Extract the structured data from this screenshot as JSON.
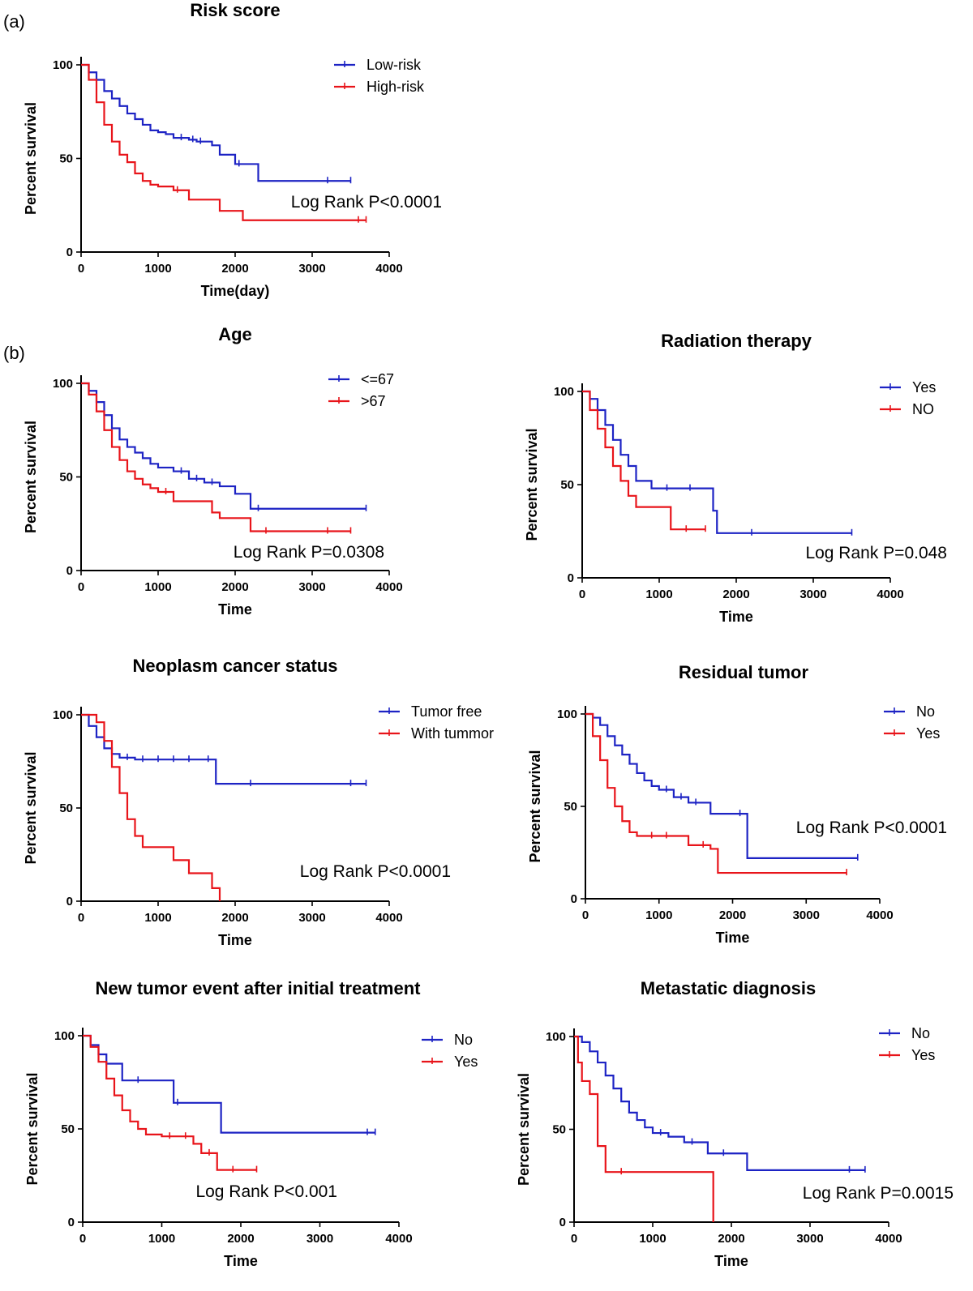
{
  "panel_labels": {
    "a": "(a)",
    "b": "(b)"
  },
  "chart_data": [
    {
      "type": "line",
      "title": "Risk score",
      "xlabel": "Time(day)",
      "ylabel": "Percent survival",
      "xlim": [
        0,
        4000
      ],
      "ylim": [
        0,
        100
      ],
      "xticks": [
        0,
        1000,
        2000,
        3000,
        4000
      ],
      "yticks": [
        0,
        50,
        100
      ],
      "legend_position": "top-right",
      "annotation": "Log Rank P<0.0001",
      "series": [
        {
          "name": "Low-risk",
          "color": "#1d23c4",
          "x": [
            0,
            100,
            200,
            300,
            400,
            500,
            600,
            700,
            800,
            900,
            1000,
            1100,
            1200,
            1300,
            1400,
            1500,
            1600,
            1700,
            1800,
            2000,
            2200,
            2300,
            2600,
            3000,
            3500
          ],
          "y": [
            100,
            96,
            92,
            86,
            82,
            78,
            74,
            71,
            68,
            65,
            64,
            63,
            61,
            61,
            60,
            59,
            59,
            57,
            52,
            47,
            47,
            38,
            38,
            38,
            38
          ],
          "censor_x": [
            1300,
            1450,
            1550,
            2050,
            3200,
            3500
          ]
        },
        {
          "name": "High-risk",
          "color": "#e8141a",
          "x": [
            0,
            100,
            200,
            300,
            400,
            500,
            600,
            700,
            800,
            900,
            1000,
            1200,
            1400,
            1600,
            1800,
            2100,
            2500,
            3000,
            3700
          ],
          "y": [
            100,
            92,
            80,
            68,
            59,
            52,
            48,
            42,
            38,
            36,
            35,
            33,
            28,
            28,
            22,
            17,
            17,
            17,
            17
          ],
          "censor_x": [
            1250,
            3600,
            3700
          ]
        }
      ]
    },
    {
      "type": "line",
      "title": "Age",
      "xlabel": "Time",
      "ylabel": "Percent survival",
      "xlim": [
        0,
        4000
      ],
      "ylim": [
        0,
        100
      ],
      "xticks": [
        0,
        1000,
        2000,
        3000,
        4000
      ],
      "yticks": [
        0,
        50,
        100
      ],
      "legend_position": "top-right",
      "annotation": "Log Rank P=0.0308",
      "series": [
        {
          "name": "<=67",
          "color": "#1d23c4",
          "x": [
            0,
            100,
            200,
            300,
            400,
            500,
            600,
            700,
            800,
            900,
            1000,
            1200,
            1400,
            1600,
            1800,
            2000,
            2200,
            2500,
            3000,
            3700
          ],
          "y": [
            100,
            96,
            90,
            83,
            76,
            70,
            66,
            63,
            60,
            57,
            55,
            53,
            49,
            47,
            45,
            41,
            33,
            33,
            33,
            33
          ],
          "censor_x": [
            1300,
            1500,
            1700,
            2300,
            3700
          ]
        },
        {
          "name": ">67",
          "color": "#e8141a",
          "x": [
            0,
            100,
            200,
            300,
            400,
            500,
            600,
            700,
            800,
            900,
            1000,
            1200,
            1400,
            1700,
            1800,
            2200,
            2600,
            3000,
            3500
          ],
          "y": [
            100,
            94,
            85,
            75,
            66,
            59,
            53,
            49,
            46,
            44,
            42,
            37,
            37,
            31,
            28,
            21,
            21,
            21,
            21
          ],
          "censor_x": [
            1100,
            2400,
            3200,
            3500
          ]
        }
      ]
    },
    {
      "type": "line",
      "title": "Radiation therapy",
      "xlabel": "Time",
      "ylabel": "Percent survival",
      "xlim": [
        0,
        4000
      ],
      "ylim": [
        0,
        100
      ],
      "xticks": [
        0,
        1000,
        2000,
        3000,
        4000
      ],
      "yticks": [
        0,
        50,
        100
      ],
      "legend_position": "top-right",
      "annotation": "Log Rank P=0.048",
      "series": [
        {
          "name": "Yes",
          "color": "#1d23c4",
          "x": [
            0,
            100,
            200,
            300,
            400,
            500,
            600,
            700,
            800,
            900,
            1000,
            1200,
            1700,
            1750,
            2200,
            3000,
            3500
          ],
          "y": [
            100,
            96,
            90,
            82,
            74,
            66,
            60,
            52,
            52,
            48,
            48,
            48,
            36,
            24,
            24,
            24,
            24
          ],
          "censor_x": [
            1100,
            1400,
            2200,
            3500
          ]
        },
        {
          "name": "NO",
          "color": "#e8141a",
          "x": [
            0,
            100,
            200,
            300,
            400,
            500,
            600,
            700,
            800,
            1000,
            1150,
            1300,
            1600
          ],
          "y": [
            100,
            90,
            80,
            70,
            60,
            52,
            44,
            38,
            38,
            38,
            26,
            26,
            26
          ],
          "censor_x": [
            1350,
            1600
          ]
        }
      ]
    },
    {
      "type": "line",
      "title": "Neoplasm cancer status",
      "xlabel": "Time",
      "ylabel": "Percent survival",
      "xlim": [
        0,
        4000
      ],
      "ylim": [
        0,
        100
      ],
      "xticks": [
        0,
        1000,
        2000,
        3000,
        4000
      ],
      "yticks": [
        0,
        50,
        100
      ],
      "legend_position": "top-right",
      "annotation": "Log Rank P<0.0001",
      "series": [
        {
          "name": "Tumor free",
          "color": "#1d23c4",
          "x": [
            0,
            100,
            200,
            300,
            400,
            500,
            700,
            1000,
            1500,
            1750,
            1800,
            2500,
            3000,
            3700
          ],
          "y": [
            100,
            94,
            88,
            82,
            79,
            77,
            76,
            76,
            76,
            63,
            63,
            63,
            63,
            63
          ],
          "censor_x": [
            600,
            800,
            1000,
            1200,
            1400,
            1650,
            2200,
            3500,
            3700
          ]
        },
        {
          "name": "With tummor",
          "color": "#e8141a",
          "x": [
            0,
            100,
            200,
            300,
            400,
            500,
            600,
            700,
            800,
            1000,
            1200,
            1400,
            1700,
            1800
          ],
          "y": [
            100,
            100,
            96,
            86,
            72,
            58,
            44,
            35,
            29,
            29,
            22,
            15,
            7,
            0
          ],
          "censor_x": []
        }
      ]
    },
    {
      "type": "line",
      "title": "Residual tumor",
      "xlabel": "Time",
      "ylabel": "Percent survival",
      "xlim": [
        0,
        4000
      ],
      "ylim": [
        0,
        100
      ],
      "xticks": [
        0,
        1000,
        2000,
        3000,
        4000
      ],
      "yticks": [
        0,
        50,
        100
      ],
      "legend_position": "top-right",
      "annotation": "Log Rank P<0.0001",
      "series": [
        {
          "name": "No",
          "color": "#1d23c4",
          "x": [
            0,
            100,
            200,
            300,
            400,
            500,
            600,
            700,
            800,
            900,
            1000,
            1200,
            1400,
            1600,
            1700,
            1800,
            2200,
            2600,
            3000,
            3700
          ],
          "y": [
            100,
            98,
            94,
            88,
            83,
            78,
            73,
            68,
            64,
            61,
            59,
            55,
            52,
            52,
            46,
            46,
            22,
            22,
            22,
            22
          ],
          "censor_x": [
            1100,
            1300,
            1500,
            2100,
            3700
          ]
        },
        {
          "name": "Yes",
          "color": "#e8141a",
          "x": [
            0,
            100,
            200,
            300,
            400,
            500,
            600,
            700,
            800,
            1000,
            1400,
            1700,
            1800,
            2500,
            3000,
            3550
          ],
          "y": [
            100,
            88,
            75,
            60,
            50,
            42,
            36,
            34,
            34,
            34,
            29,
            27,
            14,
            14,
            14,
            14
          ],
          "censor_x": [
            900,
            1100,
            1600,
            3550
          ]
        }
      ]
    },
    {
      "type": "line",
      "title": "New tumor event after initial treatment",
      "xlabel": "Time",
      "ylabel": "Percent survival",
      "xlim": [
        0,
        4000
      ],
      "ylim": [
        0,
        100
      ],
      "xticks": [
        0,
        1000,
        2000,
        3000,
        4000
      ],
      "yticks": [
        0,
        50,
        100
      ],
      "legend_position": "top-right",
      "annotation": "Log Rank P<0.001",
      "series": [
        {
          "name": "No",
          "color": "#1d23c4",
          "x": [
            0,
            100,
            200,
            300,
            500,
            1000,
            1150,
            1200,
            1750,
            2500,
            3000,
            3700
          ],
          "y": [
            100,
            95,
            90,
            85,
            76,
            76,
            64,
            64,
            48,
            48,
            48,
            48
          ],
          "censor_x": [
            700,
            1200,
            3600,
            3700
          ]
        },
        {
          "name": "Yes",
          "color": "#e8141a",
          "x": [
            0,
            100,
            200,
            300,
            400,
            500,
            600,
            700,
            800,
            1000,
            1200,
            1400,
            1500,
            1700,
            2000,
            2200
          ],
          "y": [
            100,
            94,
            86,
            77,
            68,
            60,
            54,
            50,
            47,
            46,
            46,
            42,
            37,
            28,
            28,
            28
          ],
          "censor_x": [
            1100,
            1300,
            1600,
            1900,
            2200
          ]
        }
      ]
    },
    {
      "type": "line",
      "title": "Metastatic diagnosis",
      "xlabel": "Time",
      "ylabel": "Percent survival",
      "xlim": [
        0,
        4000
      ],
      "ylim": [
        0,
        100
      ],
      "xticks": [
        0,
        1000,
        2000,
        3000,
        4000
      ],
      "yticks": [
        0,
        50,
        100
      ],
      "legend_position": "top-right",
      "annotation": "Log Rank P=0.0015",
      "series": [
        {
          "name": "No",
          "color": "#1d23c4",
          "x": [
            0,
            100,
            200,
            300,
            400,
            500,
            600,
            700,
            800,
            900,
            1000,
            1200,
            1400,
            1600,
            1700,
            2000,
            2200,
            2600,
            3000,
            3700
          ],
          "y": [
            100,
            97,
            92,
            86,
            79,
            72,
            65,
            59,
            55,
            51,
            48,
            46,
            43,
            43,
            37,
            37,
            28,
            28,
            28,
            28
          ],
          "censor_x": [
            1100,
            1500,
            1900,
            3500,
            3700
          ]
        },
        {
          "name": "Yes",
          "color": "#e8141a",
          "x": [
            0,
            50,
            100,
            200,
            300,
            400,
            1000,
            1500,
            1750,
            1770
          ],
          "y": [
            100,
            86,
            76,
            69,
            41,
            27,
            27,
            27,
            27,
            0
          ],
          "censor_x": [
            600
          ]
        }
      ]
    }
  ]
}
